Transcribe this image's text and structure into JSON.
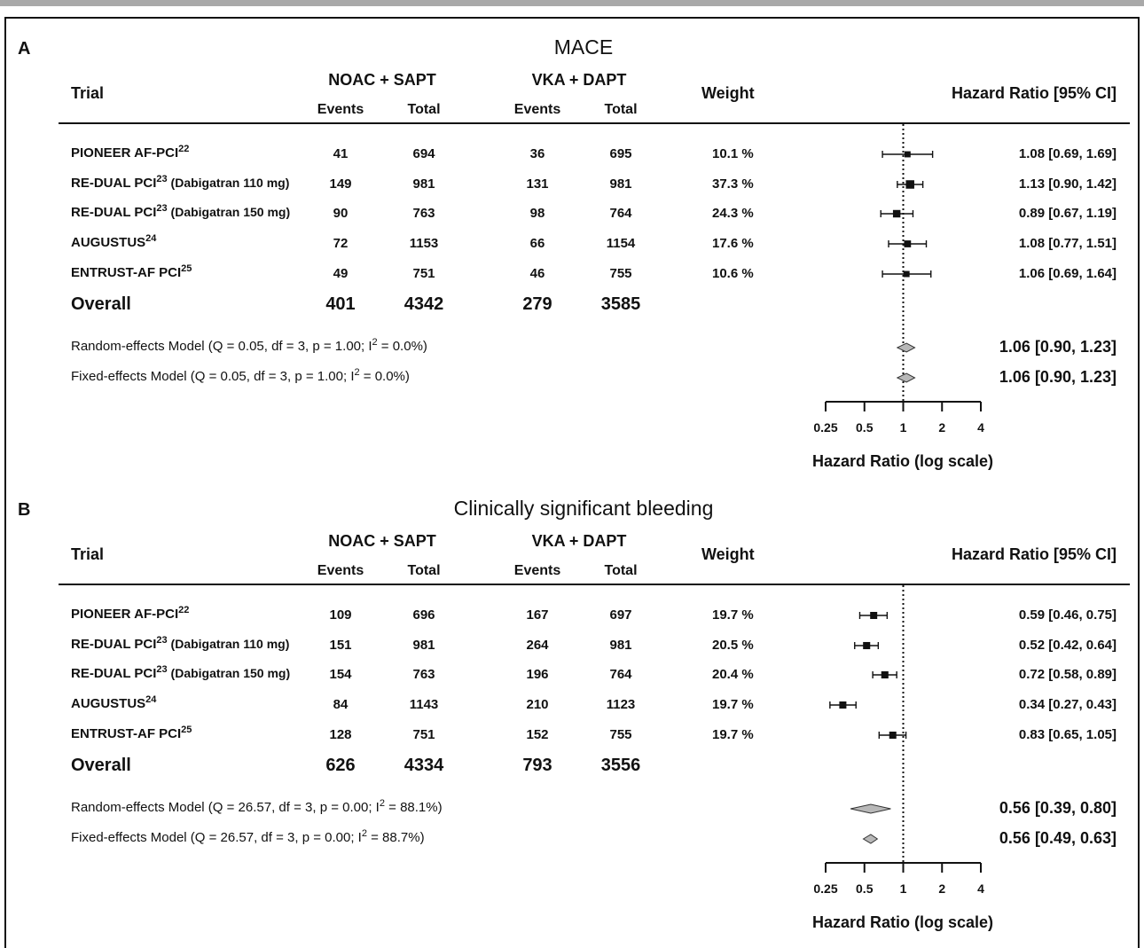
{
  "header": {
    "trial_label": "Trial",
    "group1": "NOAC + SAPT",
    "group2": "VKA + DAPT",
    "events_label": "Events",
    "total_label": "Total",
    "weight_label": "Weight",
    "hr_label": "Hazard Ratio [95% CI]"
  },
  "panels": [
    {
      "letter": "A",
      "title": "MACE",
      "rows": [
        {
          "name": "PIONEER AF-PCI",
          "ref": "22",
          "suffix": "",
          "e1": "41",
          "t1": "694",
          "e2": "36",
          "t2": "695",
          "weight": "10.1 %",
          "hr_text": "1.08 [0.69, 1.69]"
        },
        {
          "name": "RE-DUAL PCI",
          "ref": "23",
          "suffix": " (Dabigatran 110 mg)",
          "e1": "149",
          "t1": "981",
          "e2": "131",
          "t2": "981",
          "weight": "37.3 %",
          "hr_text": "1.13 [0.90, 1.42]"
        },
        {
          "name": "RE-DUAL PCI",
          "ref": "23",
          "suffix": " (Dabigatran 150 mg)",
          "e1": "90",
          "t1": "763",
          "e2": "98",
          "t2": "764",
          "weight": "24.3 %",
          "hr_text": "0.89 [0.67, 1.19]"
        },
        {
          "name": "AUGUSTUS",
          "ref": "24",
          "suffix": "",
          "e1": "72",
          "t1": "1153",
          "e2": "66",
          "t2": "1154",
          "weight": "17.6 %",
          "hr_text": "1.08 [0.77, 1.51]"
        },
        {
          "name": "ENTRUST-AF PCI",
          "ref": "25",
          "suffix": "",
          "e1": "49",
          "t1": "751",
          "e2": "46",
          "t2": "755",
          "weight": "10.6 %",
          "hr_text": "1.06 [0.69, 1.64]"
        }
      ],
      "overall": {
        "label": "Overall",
        "e1": "401",
        "t1": "4342",
        "e2": "279",
        "t2": "3585"
      },
      "random": {
        "pre": "Random-effects Model (Q = 0.05, df = 3, p = 1.00; I",
        "sup": "2",
        "post": " = 0.0%)",
        "hr_text": "1.06 [0.90, 1.23]"
      },
      "fixed": {
        "pre": "Fixed-effects Model (Q = 0.05, df = 3, p = 1.00; I",
        "sup": "2",
        "post": " = 0.0%)",
        "hr_text": "1.06 [0.90, 1.23]"
      },
      "axis_label": "Hazard Ratio (log scale)",
      "ticks": [
        "0.25",
        "0.5",
        "1",
        "2",
        "4"
      ]
    },
    {
      "letter": "B",
      "title": "Clinically significant bleeding",
      "rows": [
        {
          "name": "PIONEER AF-PCI",
          "ref": "22",
          "suffix": "",
          "e1": "109",
          "t1": "696",
          "e2": "167",
          "t2": "697",
          "weight": "19.7 %",
          "hr_text": "0.59 [0.46, 0.75]"
        },
        {
          "name": "RE-DUAL PCI",
          "ref": "23",
          "suffix": " (Dabigatran 110 mg)",
          "e1": "151",
          "t1": "981",
          "e2": "264",
          "t2": "981",
          "weight": "20.5 %",
          "hr_text": "0.52 [0.42, 0.64]"
        },
        {
          "name": "RE-DUAL PCI",
          "ref": "23",
          "suffix": " (Dabigatran 150 mg)",
          "e1": "154",
          "t1": "763",
          "e2": "196",
          "t2": "764",
          "weight": "20.4 %",
          "hr_text": "0.72 [0.58, 0.89]"
        },
        {
          "name": "AUGUSTUS",
          "ref": "24",
          "suffix": "",
          "e1": "84",
          "t1": "1143",
          "e2": "210",
          "t2": "1123",
          "weight": "19.7 %",
          "hr_text": "0.34 [0.27, 0.43]"
        },
        {
          "name": "ENTRUST-AF PCI",
          "ref": "25",
          "suffix": "",
          "e1": "128",
          "t1": "751",
          "e2": "152",
          "t2": "755",
          "weight": "19.7 %",
          "hr_text": "0.83 [0.65, 1.05]"
        }
      ],
      "overall": {
        "label": "Overall",
        "e1": "626",
        "t1": "4334",
        "e2": "793",
        "t2": "3556"
      },
      "random": {
        "pre": "Random-effects Model (Q = 26.57, df = 3, p = 0.00; I",
        "sup": "2",
        "post": " = 88.1%)",
        "hr_text": "0.56 [0.39, 0.80]"
      },
      "fixed": {
        "pre": "Fixed-effects Model (Q = 26.57, df = 3, p = 0.00; I",
        "sup": "2",
        "post": " = 88.7%)",
        "hr_text": "0.56 [0.49, 0.63]"
      },
      "axis_label": "Hazard Ratio (log scale)",
      "ticks": [
        "0.25",
        "0.5",
        "1",
        "2",
        "4"
      ]
    }
  ],
  "chart_data": [
    {
      "type": "forest",
      "title": "MACE",
      "xlabel": "Hazard Ratio (log scale)",
      "x_scale": "log",
      "xticks": [
        0.25,
        0.5,
        1,
        2,
        4
      ],
      "reference_line": 1,
      "studies": [
        {
          "label": "PIONEER AF-PCI",
          "hr": 1.08,
          "lo": 0.69,
          "hi": 1.69,
          "weight": 10.1
        },
        {
          "label": "RE-DUAL PCI (Dabigatran 110 mg)",
          "hr": 1.13,
          "lo": 0.9,
          "hi": 1.42,
          "weight": 37.3
        },
        {
          "label": "RE-DUAL PCI (Dabigatran 150 mg)",
          "hr": 0.89,
          "lo": 0.67,
          "hi": 1.19,
          "weight": 24.3
        },
        {
          "label": "AUGUSTUS",
          "hr": 1.08,
          "lo": 0.77,
          "hi": 1.51,
          "weight": 17.6
        },
        {
          "label": "ENTRUST-AF PCI",
          "hr": 1.06,
          "lo": 0.69,
          "hi": 1.64,
          "weight": 10.6
        }
      ],
      "pooled": [
        {
          "label": "Random-effects Model",
          "hr": 1.06,
          "lo": 0.9,
          "hi": 1.23
        },
        {
          "label": "Fixed-effects Model",
          "hr": 1.06,
          "lo": 0.9,
          "hi": 1.23
        }
      ]
    },
    {
      "type": "forest",
      "title": "Clinically significant bleeding",
      "xlabel": "Hazard Ratio (log scale)",
      "x_scale": "log",
      "xticks": [
        0.25,
        0.5,
        1,
        2,
        4
      ],
      "reference_line": 1,
      "studies": [
        {
          "label": "PIONEER AF-PCI",
          "hr": 0.59,
          "lo": 0.46,
          "hi": 0.75,
          "weight": 19.7
        },
        {
          "label": "RE-DUAL PCI (Dabigatran 110 mg)",
          "hr": 0.52,
          "lo": 0.42,
          "hi": 0.64,
          "weight": 20.5
        },
        {
          "label": "RE-DUAL PCI (Dabigatran 150 mg)",
          "hr": 0.72,
          "lo": 0.58,
          "hi": 0.89,
          "weight": 20.4
        },
        {
          "label": "AUGUSTUS",
          "hr": 0.34,
          "lo": 0.27,
          "hi": 0.43,
          "weight": 19.7
        },
        {
          "label": "ENTRUST-AF PCI",
          "hr": 0.83,
          "lo": 0.65,
          "hi": 1.05,
          "weight": 19.7
        }
      ],
      "pooled": [
        {
          "label": "Random-effects Model",
          "hr": 0.56,
          "lo": 0.39,
          "hi": 0.8
        },
        {
          "label": "Fixed-effects Model",
          "hr": 0.56,
          "lo": 0.49,
          "hi": 0.63
        }
      ]
    }
  ]
}
